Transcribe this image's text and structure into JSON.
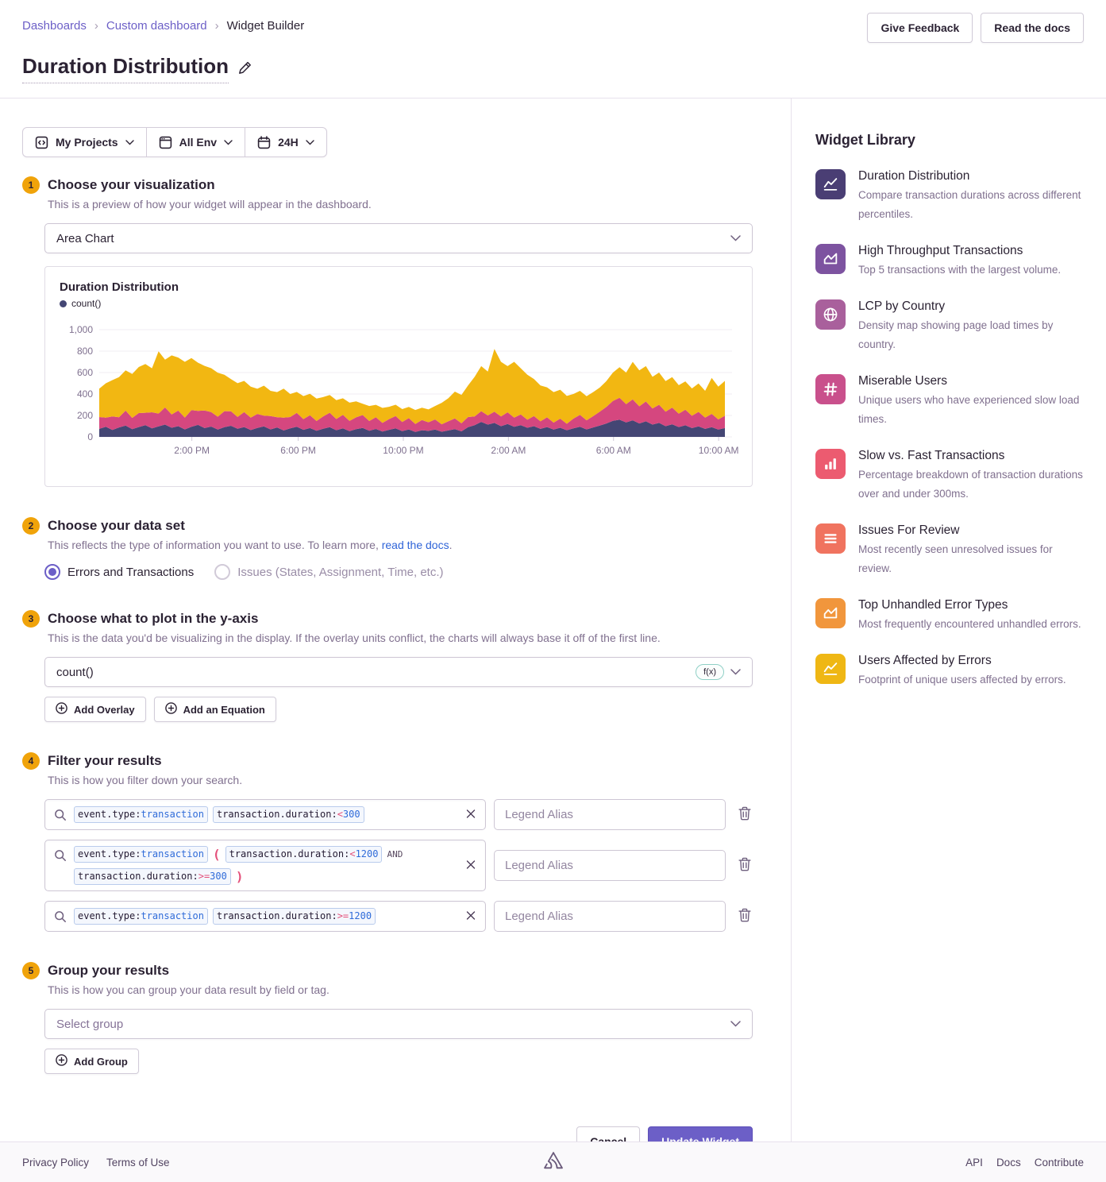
{
  "header": {
    "breadcrumb": [
      "Dashboards",
      "Custom dashboard",
      "Widget Builder"
    ],
    "actions": {
      "give_feedback": "Give Feedback",
      "read_docs": "Read the docs"
    },
    "title": "Duration Distribution"
  },
  "filter_bar": {
    "projects": "My Projects",
    "environment": "All Env",
    "time_range": "24H"
  },
  "steps": [
    {
      "num": "1",
      "title": "Choose your visualization",
      "subtitle": "This is a preview of how your widget will appear in the dashboard."
    },
    {
      "num": "2",
      "title": "Choose your data set",
      "subtitle_prefix": "This reflects the type of information you want to use. To learn more, ",
      "link_text": "read the docs",
      "subtitle_suffix": "."
    },
    {
      "num": "3",
      "title": "Choose what to plot in the y-axis",
      "subtitle": "This is the data you'd be visualizing in the display. If the overlay units conflict, the charts will always base it off of the first line."
    },
    {
      "num": "4",
      "title": "Filter your results",
      "subtitle": "This is how you filter down your search."
    },
    {
      "num": "5",
      "title": "Group your results",
      "subtitle": "This is how you can group your data result by field or tag."
    }
  ],
  "visualization": {
    "selected": "Area Chart"
  },
  "dataset": {
    "options": [
      {
        "label": "Errors and Transactions",
        "selected": true
      },
      {
        "label": "Issues (States, Assignment, Time, etc.)",
        "selected": false
      }
    ]
  },
  "yaxis": {
    "value": "count()",
    "fx_badge": "f(x)",
    "add_overlay": "Add Overlay",
    "add_equation": "Add an Equation"
  },
  "filter_rows": [
    {
      "legend_placeholder": "Legend Alias",
      "parts": [
        {
          "type": "token",
          "segs": [
            {
              "text": "event.type:",
              "cls": "k"
            },
            {
              "text": "transaction",
              "cls": "v"
            }
          ]
        },
        {
          "type": "token",
          "segs": [
            {
              "text": "transaction.duration:",
              "cls": "k"
            },
            {
              "text": "<",
              "cls": "o"
            },
            {
              "text": "300",
              "cls": "v"
            }
          ]
        }
      ]
    },
    {
      "legend_placeholder": "Legend Alias",
      "parts": [
        {
          "type": "token",
          "segs": [
            {
              "text": "event.type:",
              "cls": "k"
            },
            {
              "text": "transaction",
              "cls": "v"
            }
          ]
        },
        {
          "type": "paren",
          "text": "("
        },
        {
          "type": "token",
          "segs": [
            {
              "text": "transaction.duration:",
              "cls": "k"
            },
            {
              "text": "<",
              "cls": "o"
            },
            {
              "text": "1200",
              "cls": "v"
            }
          ]
        },
        {
          "type": "text",
          "text": "AND"
        },
        {
          "type": "token",
          "segs": [
            {
              "text": "transaction.duration:",
              "cls": "k"
            },
            {
              "text": ">=",
              "cls": "o"
            },
            {
              "text": "300",
              "cls": "v"
            }
          ]
        },
        {
          "type": "paren",
          "text": ")"
        }
      ]
    },
    {
      "legend_placeholder": "Legend Alias",
      "parts": [
        {
          "type": "token",
          "segs": [
            {
              "text": "event.type:",
              "cls": "k"
            },
            {
              "text": "transaction",
              "cls": "v"
            }
          ]
        },
        {
          "type": "token",
          "segs": [
            {
              "text": "transaction.duration:",
              "cls": "k"
            },
            {
              "text": ">=",
              "cls": "o"
            },
            {
              "text": "1200",
              "cls": "v"
            }
          ]
        }
      ]
    }
  ],
  "group": {
    "placeholder": "Select group",
    "add_group": "Add Group"
  },
  "bottom_actions": {
    "cancel": "Cancel",
    "update": "Update Widget"
  },
  "library": {
    "title": "Widget Library",
    "items": [
      {
        "icon": "line-chart",
        "color": "#4a3e74",
        "title": "Duration Distribution",
        "desc": "Compare transaction durations across different percentiles."
      },
      {
        "icon": "area-chart",
        "color": "#7d53a0",
        "title": "High Throughput Transactions",
        "desc": "Top 5 transactions with the largest volume."
      },
      {
        "icon": "globe",
        "color": "#a9609c",
        "title": "LCP by Country",
        "desc": "Density map showing page load times by country."
      },
      {
        "icon": "hash",
        "color": "#c9508c",
        "title": "Miserable Users",
        "desc": "Unique users who have experienced slow load times."
      },
      {
        "icon": "bar-chart",
        "color": "#ec5b70",
        "title": "Slow vs. Fast Transactions",
        "desc": "Percentage breakdown of transaction durations over and under 300ms."
      },
      {
        "icon": "list",
        "color": "#f0735f",
        "title": "Issues For Review",
        "desc": "Most recently seen unresolved issues for review."
      },
      {
        "icon": "area-chart",
        "color": "#f1963c",
        "title": "Top Unhandled Error Types",
        "desc": "Most frequently encountered unhandled errors."
      },
      {
        "icon": "line-chart",
        "color": "#efb714",
        "title": "Users Affected by Errors",
        "desc": "Footprint of unique users affected by errors."
      }
    ]
  },
  "footer": {
    "left": [
      "Privacy Policy",
      "Terms of Use"
    ],
    "right": [
      "API",
      "Docs",
      "Contribute"
    ]
  },
  "colors": {
    "accent_purple": "#6c5fc7",
    "badge_yellow": "#f0a30a",
    "link_blue": "#2f64d8",
    "border": "#e7e1ec"
  },
  "chart_data": {
    "type": "area",
    "stacked": true,
    "title": "Duration Distribution",
    "legend": [
      "count()"
    ],
    "legend_color": "#444674",
    "xlabel": "",
    "ylabel": "",
    "ylim": [
      0,
      1000
    ],
    "y_ticks": {
      "values": [
        0,
        200,
        400,
        600,
        800,
        1000
      ],
      "labels": [
        "0",
        "200",
        "400",
        "600",
        "800",
        "1,000"
      ]
    },
    "x_ticks": {
      "labels": [
        "2:00 PM",
        "6:00 PM",
        "10:00 PM",
        "2:00 AM",
        "6:00 AM",
        "10:00 AM"
      ],
      "fractions": [
        0.148,
        0.318,
        0.486,
        0.654,
        0.822,
        0.99
      ]
    },
    "grid": "horizontal",
    "legend_position": "top-left",
    "series": [
      {
        "name": "band-1",
        "color": "#444674",
        "values": [
          75,
          95,
          65,
          88,
          105,
          72,
          92,
          110,
          80,
          98,
          115,
          85,
          100,
          70,
          95,
          112,
          82,
          96,
          68,
          90,
          104,
          76,
          92,
          64,
          84,
          98,
          70,
          88,
          60,
          80,
          94,
          66,
          82,
          58,
          76,
          90,
          62,
          80,
          54,
          72,
          84,
          58,
          74,
          50,
          66,
          80,
          54,
          70,
          46,
          62,
          56,
          68,
          48,
          60,
          72,
          52,
          90,
          110,
          140,
          115,
          130,
          100,
          120,
          95,
          110,
          85,
          100,
          75,
          92,
          68,
          85,
          62,
          80,
          95,
          70,
          88,
          105,
          125,
          150,
          160,
          135,
          155,
          125,
          145,
          115,
          130,
          100,
          118,
          92,
          108,
          82,
          98,
          75,
          90,
          68,
          82
        ]
      },
      {
        "name": "band-2",
        "color": "#d5477f",
        "values": [
          110,
          85,
          125,
          95,
          140,
          105,
          130,
          115,
          150,
          120,
          160,
          125,
          145,
          110,
          155,
          130,
          165,
          135,
          120,
          150,
          135,
          110,
          140,
          115,
          130,
          100,
          125,
          95,
          120,
          105,
          130,
          100,
          120,
          90,
          115,
          135,
          105,
          125,
          95,
          110,
          120,
          90,
          110,
          80,
          100,
          115,
          85,
          105,
          75,
          95,
          80,
          95,
          70,
          85,
          100,
          75,
          95,
          80,
          100,
          85,
          105,
          90,
          110,
          85,
          100,
          75,
          95,
          70,
          90,
          65,
          85,
          60,
          90,
          110,
          85,
          105,
          130,
          155,
          185,
          205,
          170,
          195,
          160,
          185,
          150,
          170,
          135,
          155,
          125,
          145,
          115,
          135,
          105,
          125,
          95,
          115
        ]
      },
      {
        "name": "band-3",
        "color": "#f2b712",
        "values": [
          265,
          320,
          340,
          375,
          375,
          410,
          430,
          455,
          410,
          580,
          445,
          550,
          495,
          520,
          485,
          450,
          415,
          410,
          410,
          340,
          300,
          315,
          290,
          290,
          235,
          280,
          235,
          235,
          270,
          215,
          195,
          215,
          200,
          210,
          180,
          165,
          175,
          155,
          170,
          150,
          105,
          140,
          115,
          140,
          115,
          105,
          120,
          105,
          130,
          115,
          120,
          125,
          200,
          215,
          250,
          265,
          295,
          370,
          420,
          410,
          585,
          510,
          430,
          520,
          430,
          420,
          345,
          335,
          280,
          285,
          270,
          260,
          230,
          225,
          225,
          225,
          225,
          240,
          265,
          285,
          295,
          350,
          335,
          330,
          295,
          300,
          285,
          285,
          265,
          265,
          255,
          265,
          250,
          335,
          305,
          325
        ]
      }
    ]
  }
}
